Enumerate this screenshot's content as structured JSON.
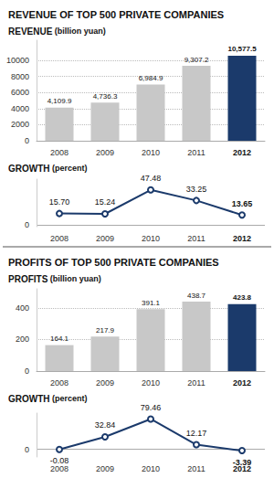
{
  "chart_data": [
    {
      "type": "bar",
      "title": "REVENUE OF TOP 500 PRIVATE COMPANIES",
      "ylabel": "REVENUE (billion yuan)",
      "categories": [
        "2008",
        "2009",
        "2010",
        "2011",
        "2012"
      ],
      "values": [
        4109.9,
        4736.3,
        6984.9,
        9307.2,
        10577.5
      ],
      "value_labels": [
        "4,109.9",
        "4,736.3",
        "6,984.9",
        "9,307.2",
        "10,577.5"
      ],
      "data_labels": true,
      "colors": [
        "#c8c8c8",
        "#c8c8c8",
        "#c8c8c8",
        "#c8c8c8",
        "#1b3a6b"
      ],
      "ylim": [
        0,
        12500
      ],
      "yticks": [
        0,
        2000,
        4000,
        6000,
        8000,
        10000
      ],
      "grid": true
    },
    {
      "type": "line",
      "ylabel": "GROWTH (percent)",
      "categories": [
        "2008",
        "2009",
        "2010",
        "2011",
        "2012"
      ],
      "values": [
        15.7,
        15.24,
        47.48,
        33.25,
        13.65
      ],
      "value_labels": [
        "15.70",
        "15.24",
        "47.48",
        "33.25",
        "13.65"
      ],
      "data_labels": true,
      "color": "#1b3a6b",
      "marker": "circle",
      "ylim": [
        -2,
        62
      ],
      "yticks": [
        0
      ],
      "grid": true
    },
    {
      "type": "bar",
      "title": "PROFITS OF TOP 500 PRIVATE COMPANIES",
      "ylabel": "PROFITS (billion yuan)",
      "categories": [
        "2008",
        "2009",
        "2010",
        "2011",
        "2012"
      ],
      "values": [
        164.1,
        217.9,
        391.1,
        438.7,
        423.8
      ],
      "data_labels": true,
      "colors": [
        "#c8c8c8",
        "#c8c8c8",
        "#c8c8c8",
        "#c8c8c8",
        "#1b3a6b"
      ],
      "ylim": [
        0,
        520
      ],
      "yticks": [
        0,
        200,
        400
      ],
      "grid": true
    },
    {
      "type": "line",
      "ylabel": "GROWTH (percent)",
      "categories": [
        "2008",
        "2009",
        "2010",
        "2011",
        "2012"
      ],
      "values": [
        -0.08,
        32.84,
        79.46,
        12.17,
        -3.39
      ],
      "data_labels": true,
      "color": "#1b3a6b",
      "marker": "circle",
      "ylim": [
        -20,
        95
      ],
      "yticks": [
        0
      ],
      "grid": true
    }
  ]
}
